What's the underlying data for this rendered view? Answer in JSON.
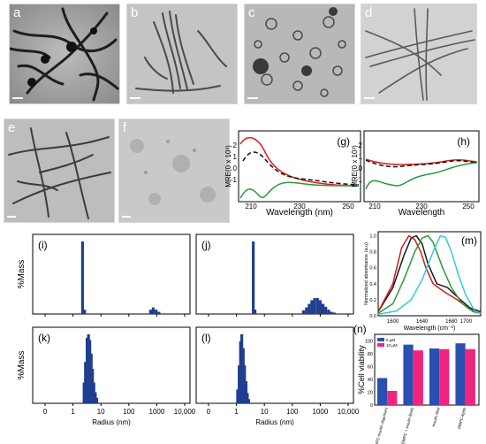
{
  "tem_panels": [
    {
      "label": "a",
      "bg1": "#b4b4b4",
      "bg2": "#6f6f6f"
    },
    {
      "label": "b",
      "bg1": "#cfcfcf",
      "bg2": "#9a9a9a"
    },
    {
      "label": "c",
      "bg1": "#c0c0c0",
      "bg2": "#8a8a8a"
    },
    {
      "label": "d",
      "bg1": "#dadada",
      "bg2": "#a8a8a8"
    },
    {
      "label": "e",
      "bg1": "#c6c6c6",
      "bg2": "#8c8c8c"
    },
    {
      "label": "f",
      "bg1": "#cdcdcd",
      "bg2": "#b0b0b0"
    }
  ],
  "cd_spectra": {
    "panel_g": {
      "label": "(g)",
      "ylabel": "MRE(0 x 10³)",
      "xlabel": "Wavelength (nm)",
      "xticks": [
        "210",
        "230",
        "250"
      ],
      "yticks": [
        "2",
        "1",
        "0",
        "-1"
      ]
    },
    "panel_h": {
      "label": "(h)",
      "ylabel": "MRE(0 x 10³)",
      "xlabel": "Wavelength",
      "xticks": [
        "210",
        "230",
        "250"
      ],
      "yticks": [
        "2",
        "1",
        "0",
        "-1"
      ]
    }
  },
  "chart_data": [
    {
      "type": "bar",
      "panel": "(i)",
      "ylabel": "%Mass",
      "xscale": "log",
      "xticks": [
        "0",
        "1",
        "10",
        "100",
        "1000",
        "10,000"
      ],
      "bars": [
        {
          "x": 2.2,
          "v": 100
        },
        {
          "x": 2.6,
          "v": 6
        },
        {
          "x": 600,
          "v": 6
        },
        {
          "x": 750,
          "v": 9
        },
        {
          "x": 950,
          "v": 6
        },
        {
          "x": 1200,
          "v": 3
        }
      ]
    },
    {
      "type": "bar",
      "panel": "(j)",
      "xscale": "log",
      "xticks": [
        "0",
        "1",
        "10",
        "100",
        "1000",
        "10,000"
      ],
      "bars": [
        {
          "x": 4.0,
          "v": 100
        },
        {
          "x": 4.6,
          "v": 6
        },
        {
          "x": 250,
          "v": 5
        },
        {
          "x": 320,
          "v": 9
        },
        {
          "x": 400,
          "v": 14
        },
        {
          "x": 500,
          "v": 19
        },
        {
          "x": 630,
          "v": 22
        },
        {
          "x": 800,
          "v": 22
        },
        {
          "x": 1000,
          "v": 19
        },
        {
          "x": 1260,
          "v": 14
        },
        {
          "x": 1580,
          "v": 10
        },
        {
          "x": 2000,
          "v": 6
        },
        {
          "x": 2500,
          "v": 3
        },
        {
          "x": 3160,
          "v": 2
        }
      ]
    },
    {
      "type": "bar",
      "panel": "(k)",
      "ylabel": "%Mass",
      "xlabel": "Radius (nm)",
      "xscale": "log",
      "xticks": [
        "0",
        "1",
        "10",
        "100",
        "1000",
        "10,000"
      ],
      "bars": [
        {
          "x": 2.5,
          "v": 30
        },
        {
          "x": 2.8,
          "v": 60
        },
        {
          "x": 3.2,
          "v": 95
        },
        {
          "x": 3.6,
          "v": 100
        },
        {
          "x": 4.0,
          "v": 92
        },
        {
          "x": 4.5,
          "v": 72
        },
        {
          "x": 5.0,
          "v": 50
        },
        {
          "x": 5.6,
          "v": 30
        },
        {
          "x": 6.3,
          "v": 16
        },
        {
          "x": 7.1,
          "v": 8
        }
      ]
    },
    {
      "type": "bar",
      "panel": "(l)",
      "xlabel": "Radius (nm)",
      "xscale": "log",
      "xticks": [
        "0",
        "1",
        "10",
        "100",
        "1000",
        "10,000"
      ],
      "bars": [
        {
          "x": 1.1,
          "v": 20
        },
        {
          "x": 1.25,
          "v": 55
        },
        {
          "x": 1.4,
          "v": 90
        },
        {
          "x": 1.55,
          "v": 100
        },
        {
          "x": 1.75,
          "v": 80
        },
        {
          "x": 1.95,
          "v": 55
        },
        {
          "x": 2.2,
          "v": 32
        },
        {
          "x": 2.45,
          "v": 15
        },
        {
          "x": 2.75,
          "v": 6
        }
      ]
    },
    {
      "type": "line",
      "panel": "(m)",
      "ylabel": "Normalized absorbance (a.u)",
      "xlabel": "Wavelength (cm⁻¹)",
      "xticks": [
        "1600",
        "1640",
        "1680",
        "1700"
      ],
      "yticks": [
        "0.0",
        "0.2",
        "0.4",
        "0.6",
        "0.8",
        "1.0"
      ],
      "xlim": [
        1580,
        1720
      ],
      "ylim": [
        0,
        1.05
      ],
      "series": [
        {
          "color": "#1a1a1a",
          "x": [
            1580,
            1600,
            1615,
            1625,
            1632,
            1640,
            1648,
            1660,
            1675,
            1690,
            1705,
            1720
          ],
          "y": [
            0.05,
            0.35,
            0.75,
            0.97,
            1.0,
            0.9,
            0.65,
            0.4,
            0.35,
            0.22,
            0.1,
            0.05
          ]
        },
        {
          "color": "#d01c1c",
          "x": [
            1580,
            1600,
            1612,
            1622,
            1630,
            1638,
            1645,
            1655,
            1670,
            1688,
            1705,
            1720
          ],
          "y": [
            0.05,
            0.4,
            0.85,
            1.0,
            0.95,
            0.8,
            0.6,
            0.4,
            0.3,
            0.2,
            0.08,
            0.04
          ]
        },
        {
          "color": "#2a9a3a",
          "x": [
            1580,
            1600,
            1615,
            1630,
            1640,
            1648,
            1655,
            1668,
            1680,
            1695,
            1710,
            1720
          ],
          "y": [
            0.03,
            0.15,
            0.45,
            0.8,
            0.97,
            1.0,
            0.92,
            0.6,
            0.35,
            0.15,
            0.05,
            0.03
          ]
        },
        {
          "color": "#33cdd8",
          "x": [
            1580,
            1605,
            1625,
            1640,
            1655,
            1665,
            1672,
            1680,
            1690,
            1700,
            1712,
            1720
          ],
          "y": [
            0.02,
            0.06,
            0.2,
            0.45,
            0.8,
            1.0,
            0.98,
            0.8,
            0.5,
            0.25,
            0.06,
            0.03
          ]
        }
      ]
    },
    {
      "type": "bar",
      "panel": "(n)",
      "ylabel": "%Cell viability",
      "yticks": [
        "0",
        "20",
        "40",
        "60",
        "80",
        "100"
      ],
      "ylim": [
        0,
        110
      ],
      "categories": [
        "DMPC-insulin oligomers",
        "DMPC + insulin fibrils",
        "Insulin fibril",
        "DMPC-lipids"
      ],
      "series": [
        {
          "name": "5 μM",
          "color": "#2b4fb0",
          "values": [
            42,
            94,
            88,
            96
          ]
        },
        {
          "name": "10 μM",
          "color": "#f0247c",
          "values": [
            22,
            85,
            87,
            87
          ]
        }
      ]
    }
  ]
}
